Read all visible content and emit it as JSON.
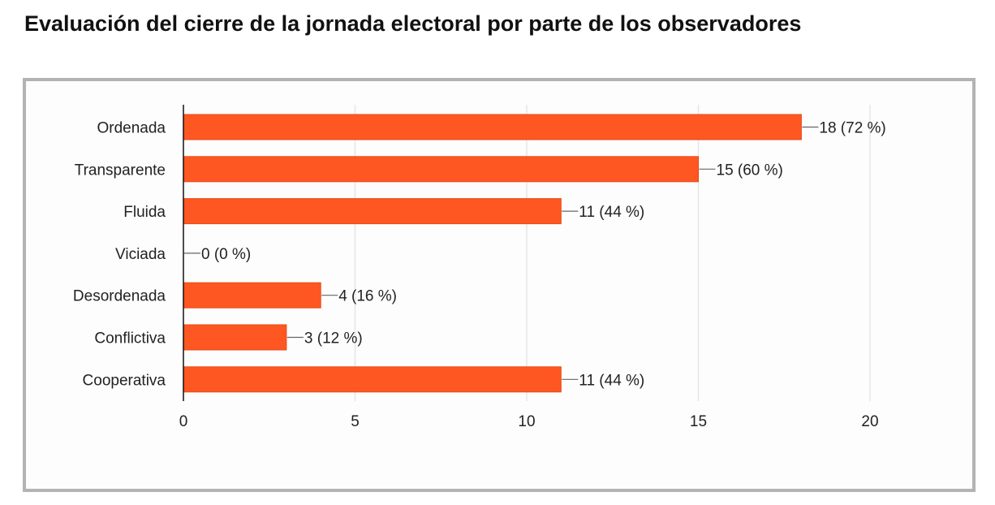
{
  "title": "Evaluación del cierre de la jornada electoral por parte de los observadores",
  "chart_data": {
    "type": "bar",
    "orientation": "horizontal",
    "categories": [
      "Ordenada",
      "Transparente",
      "Fluida",
      "Viciada",
      "Desordenada",
      "Conflictiva",
      "Cooperativa"
    ],
    "values": [
      18,
      15,
      11,
      0,
      4,
      3,
      11
    ],
    "data_labels": [
      "18 (72 %)",
      "15 (60 %)",
      "11 (44 %)",
      "0 (0 %)",
      "4 (16 %)",
      "3 (12 %)",
      "11 (44 %)"
    ],
    "xlim": [
      0,
      20
    ],
    "xticks": [
      0,
      5,
      10,
      15,
      20
    ],
    "grid": true,
    "bar_color": "#ff5722",
    "bar_border_color": "#e64a19",
    "grid_color": "#e6e6e6",
    "axis_color": "#111111"
  }
}
